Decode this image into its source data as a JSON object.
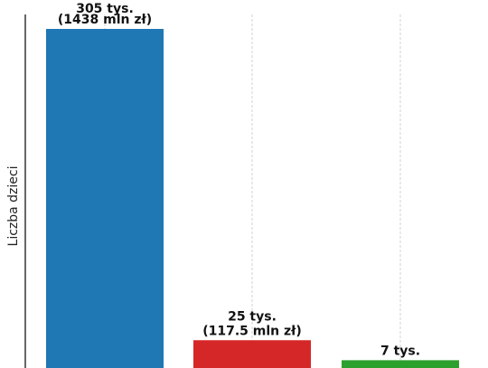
{
  "chart_data": {
    "type": "bar",
    "title": "",
    "xlabel": "",
    "ylabel": "Liczba dzieci",
    "ylim": [
      0,
      318
    ],
    "grid": "vertical-dashed",
    "bars": [
      {
        "value": 305,
        "label_line1": "305 tys.",
        "label_line2": "(1438 mln zł)",
        "color": "#1f77b4"
      },
      {
        "value": 25,
        "label_line1": "25 tys.",
        "label_line2": "(117.5 mln zł)",
        "color": "#d62728"
      },
      {
        "value": 7,
        "label_line1": "7 tys.",
        "label_line2": "",
        "color": "#2ca02c"
      }
    ]
  }
}
